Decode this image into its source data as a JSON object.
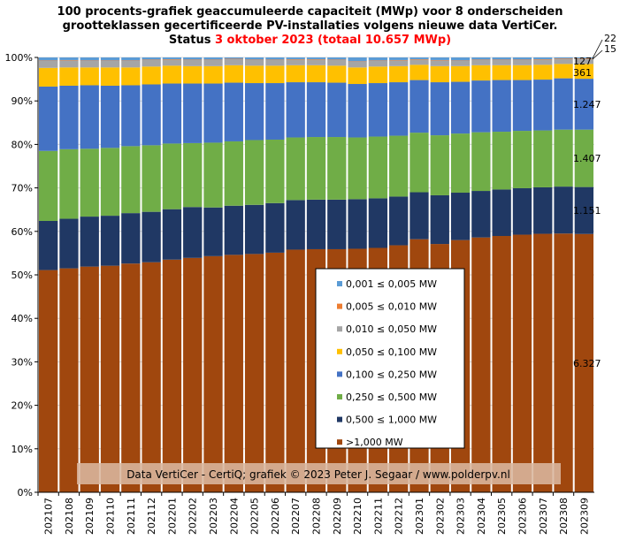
{
  "title": {
    "line1": "100 procents-grafiek geaccumuleerde capaciteit (MWp) voor 8 onderscheiden",
    "line2": "grootteklassen gecertificeerde PV-installaties volgens nieuwe data VertiCer.",
    "line3_prefix": "Status ",
    "line3_date": "3 oktober 2023",
    "line3_total": " (totaal 10.657 MWp)"
  },
  "credit": "Data VertiCer - CertiQ; grafiek © 2023 Peter J. Segaar / www.polderpv.nl",
  "colors": {
    "title_highlight": "#ff0000",
    "credit_box": "#d9b79f"
  },
  "chart_data": {
    "type": "bar",
    "stacked": "100%",
    "categories": [
      "202107",
      "202108",
      "202109",
      "202110",
      "202111",
      "202112",
      "202201",
      "202202",
      "202203",
      "202204",
      "202205",
      "202206",
      "202207",
      "202208",
      "202209",
      "202210",
      "202211",
      "202212",
      "202301",
      "202302",
      "202303",
      "202304",
      "202305",
      "202306",
      "202307",
      "202308",
      "202309"
    ],
    "yticks": [
      "0%",
      "10%",
      "20%",
      "30%",
      "40%",
      "50%",
      "60%",
      "70%",
      "80%",
      "90%",
      "100%"
    ],
    "ylim": [
      0,
      100
    ],
    "legend_position": "center",
    "series": [
      {
        "name": ">1,000 MW",
        "color": "#a0470e",
        "values": [
          51.1,
          51.5,
          51.9,
          52.1,
          52.6,
          52.9,
          53.5,
          53.9,
          54.3,
          54.6,
          54.8,
          55.1,
          55.8,
          55.9,
          55.9,
          56.0,
          56.2,
          56.8,
          58.2,
          57.1,
          58.0,
          58.6,
          59.0,
          59.3,
          59.5,
          59.5,
          59.4
        ]
      },
      {
        "name": "0,500 ≤  1,000 MW",
        "color": "#203864",
        "values": [
          11.3,
          11.4,
          11.5,
          11.5,
          11.6,
          11.6,
          11.6,
          11.7,
          11.2,
          11.3,
          11.3,
          11.4,
          11.4,
          11.4,
          11.4,
          11.4,
          11.4,
          11.2,
          10.8,
          11.2,
          10.9,
          10.7,
          10.7,
          10.7,
          10.7,
          10.8,
          10.8
        ]
      },
      {
        "name": "0,250 ≤  0,500 MW",
        "color": "#70ad47",
        "values": [
          16.1,
          16.0,
          15.6,
          15.6,
          15.4,
          15.3,
          15.1,
          14.7,
          14.9,
          14.8,
          14.9,
          14.6,
          14.4,
          14.4,
          14.4,
          14.2,
          14.2,
          14.0,
          13.7,
          13.8,
          13.6,
          13.5,
          13.3,
          13.2,
          13.1,
          13.1,
          13.2
        ]
      },
      {
        "name": "0,100 ≤  0,250 MW",
        "color": "#4472c4",
        "values": [
          14.8,
          14.6,
          14.6,
          14.3,
          14.0,
          14.0,
          13.8,
          13.7,
          13.6,
          13.5,
          13.1,
          13.0,
          12.7,
          12.6,
          12.5,
          12.3,
          12.3,
          12.3,
          12.1,
          12.2,
          11.9,
          11.9,
          11.9,
          11.7,
          11.7,
          11.8,
          11.7
        ]
      },
      {
        "name": "0,050 ≤  0,100 MW",
        "color": "#ffc000",
        "values": [
          4.3,
          4.2,
          4.1,
          4.2,
          4.1,
          4.1,
          4.1,
          4.0,
          4.0,
          4.0,
          4.0,
          4.0,
          3.9,
          3.9,
          3.9,
          3.8,
          3.8,
          3.7,
          3.5,
          3.7,
          3.6,
          3.5,
          3.4,
          3.4,
          3.4,
          3.3,
          3.4
        ]
      },
      {
        "name": "0,010 ≤  0,050 MW",
        "color": "#a5a5a5",
        "values": [
          1.6,
          1.6,
          1.5,
          1.5,
          1.5,
          1.5,
          1.4,
          1.4,
          1.4,
          1.4,
          1.3,
          1.3,
          1.3,
          1.3,
          1.3,
          1.3,
          1.3,
          1.3,
          1.2,
          1.3,
          1.2,
          1.2,
          1.2,
          1.2,
          1.2,
          1.2,
          1.2
        ]
      },
      {
        "name": "0,005 ≤  0,010 MW",
        "color": "#ed7d31",
        "values": [
          0.1,
          0.1,
          0.1,
          0.1,
          0.1,
          0.1,
          0.1,
          0.1,
          0.1,
          0.1,
          0.1,
          0.1,
          0.1,
          0.1,
          0.1,
          0.1,
          0.1,
          0.1,
          0.1,
          0.1,
          0.1,
          0.1,
          0.1,
          0.1,
          0.1,
          0.1,
          0.1
        ]
      },
      {
        "name": "0,001 ≤  0,005 MW",
        "color": "#5b9bd5",
        "values": [
          0.7,
          0.6,
          0.7,
          0.7,
          0.7,
          0.5,
          0.4,
          0.5,
          0.5,
          0.3,
          0.5,
          0.5,
          0.4,
          0.4,
          0.5,
          0.9,
          0.7,
          0.6,
          0.4,
          0.6,
          0.7,
          0.5,
          0.5,
          0.5,
          0.4,
          0.2,
          0.2
        ]
      }
    ],
    "end_labels": [
      {
        "series": ">1,000 MW",
        "text": "6.327"
      },
      {
        "series": "0,500 ≤  1,000 MW",
        "text": "1.151"
      },
      {
        "series": "0,250 ≤  0,500 MW",
        "text": "1.407"
      },
      {
        "series": "0,100 ≤  0,250 MW",
        "text": "1.247"
      },
      {
        "series": "0,050 ≤  0,100 MW",
        "text": "361"
      },
      {
        "series": "0,010 ≤  0,050 MW",
        "text": "127"
      },
      {
        "series": "0,005 ≤  0,010 MW",
        "text": "15"
      },
      {
        "series": "0,001 ≤  0,005 MW",
        "text": "22"
      }
    ],
    "legend_order": [
      "0,001 ≤  0,005 MW",
      "0,005 ≤  0,010 MW",
      "0,010 ≤  0,050 MW",
      "0,050 ≤  0,100 MW",
      "0,100 ≤  0,250 MW",
      "0,250 ≤  0,500 MW",
      "0,500 ≤  1,000 MW",
      ">1,000 MW"
    ]
  }
}
